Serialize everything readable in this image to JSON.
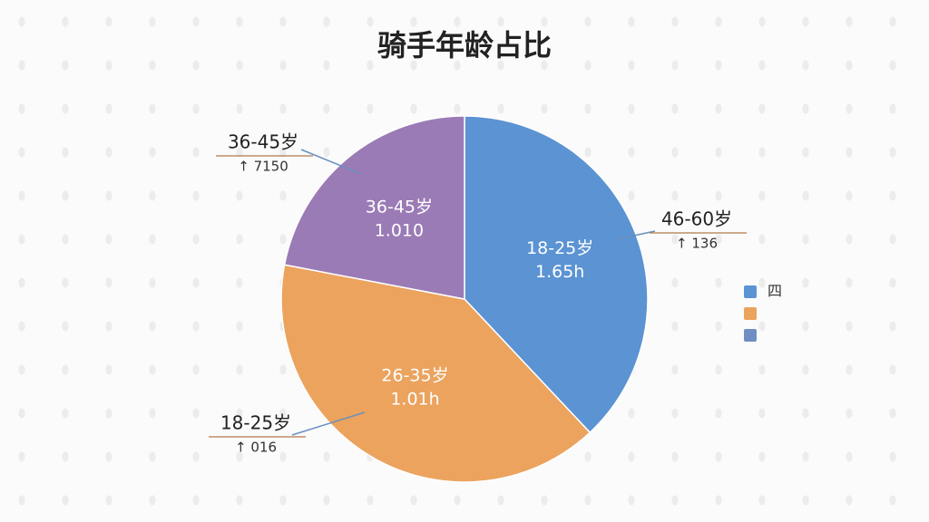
{
  "chart_data": {
    "type": "pie",
    "title": "骑手年龄占比",
    "categories": [
      "18-25岁",
      "26-35岁",
      "36-45岁"
    ],
    "values": [
      38,
      40,
      22
    ],
    "colors": [
      "#5b93d3",
      "#eba35e",
      "#9b7bb5"
    ],
    "slice_labels": [
      "1.65h",
      "1.01h",
      "1.010"
    ],
    "annotations": [
      {
        "label": "36-45岁",
        "note": "↑ 7150"
      },
      {
        "label": "46-60岁",
        "note": "↑ 136"
      },
      {
        "label": "18-25岁",
        "note": "↑ 016"
      }
    ],
    "legend": [
      {
        "color": "#5b93d3",
        "label": "四"
      },
      {
        "color": "#eba35e"
      },
      {
        "color": "#6f8fc4"
      }
    ]
  }
}
